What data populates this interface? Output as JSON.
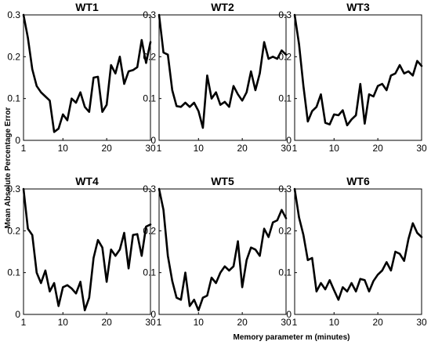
{
  "figure": {
    "xlabel": "Memory parameter m (minutes)",
    "ylabel": "Mean Absolute Percentage Error"
  },
  "chart_data": [
    {
      "type": "line",
      "title": "WT1",
      "xlim": [
        1,
        30
      ],
      "ylim": [
        0,
        0.3
      ],
      "xticks": [
        1,
        10,
        20,
        30
      ],
      "yticks": [
        0,
        0.1,
        0.2,
        0.3
      ],
      "x": [
        1,
        2,
        3,
        4,
        5,
        6,
        7,
        8,
        9,
        10,
        11,
        12,
        13,
        14,
        15,
        16,
        17,
        18,
        19,
        20,
        21,
        22,
        23,
        24,
        25,
        26,
        27,
        28,
        29,
        30
      ],
      "values": [
        0.3,
        0.245,
        0.17,
        0.13,
        0.115,
        0.105,
        0.095,
        0.02,
        0.028,
        0.062,
        0.048,
        0.1,
        0.09,
        0.115,
        0.08,
        0.068,
        0.15,
        0.152,
        0.068,
        0.085,
        0.18,
        0.16,
        0.2,
        0.135,
        0.165,
        0.168,
        0.175,
        0.24,
        0.185,
        0.235
      ]
    },
    {
      "type": "line",
      "title": "WT2",
      "xlim": [
        1,
        30
      ],
      "ylim": [
        0,
        0.3
      ],
      "xticks": [
        1,
        10,
        20,
        30
      ],
      "yticks": [
        0,
        0.1,
        0.2,
        0.3
      ],
      "x": [
        1,
        2,
        3,
        4,
        5,
        6,
        7,
        8,
        9,
        10,
        11,
        12,
        13,
        14,
        15,
        16,
        17,
        18,
        19,
        20,
        21,
        22,
        23,
        24,
        25,
        26,
        27,
        28,
        29,
        30
      ],
      "values": [
        0.3,
        0.21,
        0.205,
        0.12,
        0.082,
        0.08,
        0.09,
        0.08,
        0.09,
        0.07,
        0.03,
        0.155,
        0.1,
        0.115,
        0.085,
        0.092,
        0.08,
        0.13,
        0.11,
        0.095,
        0.115,
        0.165,
        0.12,
        0.16,
        0.235,
        0.195,
        0.2,
        0.195,
        0.215,
        0.205
      ]
    },
    {
      "type": "line",
      "title": "WT3",
      "xlim": [
        1,
        30
      ],
      "ylim": [
        0,
        0.3
      ],
      "xticks": [
        1,
        10,
        20,
        30
      ],
      "yticks": [
        0,
        0.1,
        0.2,
        0.3
      ],
      "x": [
        1,
        2,
        3,
        4,
        5,
        6,
        7,
        8,
        9,
        10,
        11,
        12,
        13,
        14,
        15,
        16,
        17,
        18,
        19,
        20,
        21,
        22,
        23,
        24,
        25,
        26,
        27,
        28,
        29,
        30
      ],
      "values": [
        0.3,
        0.23,
        0.13,
        0.045,
        0.07,
        0.08,
        0.11,
        0.042,
        0.038,
        0.062,
        0.06,
        0.072,
        0.036,
        0.05,
        0.06,
        0.135,
        0.04,
        0.11,
        0.105,
        0.13,
        0.135,
        0.12,
        0.155,
        0.16,
        0.18,
        0.16,
        0.165,
        0.155,
        0.19,
        0.178
      ]
    },
    {
      "type": "line",
      "title": "WT4",
      "xlim": [
        1,
        30
      ],
      "ylim": [
        0,
        0.3
      ],
      "xticks": [
        1,
        10,
        20,
        30
      ],
      "yticks": [
        0,
        0.1,
        0.2,
        0.3
      ],
      "x": [
        1,
        2,
        3,
        4,
        5,
        6,
        7,
        8,
        9,
        10,
        11,
        12,
        13,
        14,
        15,
        16,
        17,
        18,
        19,
        20,
        21,
        22,
        23,
        24,
        25,
        26,
        27,
        28,
        29,
        30
      ],
      "values": [
        0.3,
        0.205,
        0.19,
        0.1,
        0.075,
        0.105,
        0.055,
        0.075,
        0.02,
        0.065,
        0.07,
        0.062,
        0.05,
        0.078,
        0.01,
        0.04,
        0.135,
        0.178,
        0.16,
        0.078,
        0.155,
        0.14,
        0.155,
        0.195,
        0.11,
        0.19,
        0.192,
        0.14,
        0.21,
        0.215
      ]
    },
    {
      "type": "line",
      "title": "WT5",
      "xlim": [
        1,
        30
      ],
      "ylim": [
        0,
        0.3
      ],
      "xticks": [
        1,
        10,
        20,
        30
      ],
      "yticks": [
        0,
        0.1,
        0.2,
        0.3
      ],
      "x": [
        1,
        2,
        3,
        4,
        5,
        6,
        7,
        8,
        9,
        10,
        11,
        12,
        13,
        14,
        15,
        16,
        17,
        18,
        19,
        20,
        21,
        22,
        23,
        24,
        25,
        26,
        27,
        28,
        29,
        30
      ],
      "values": [
        0.3,
        0.25,
        0.14,
        0.08,
        0.04,
        0.035,
        0.1,
        0.02,
        0.035,
        0.01,
        0.04,
        0.045,
        0.088,
        0.075,
        0.1,
        0.115,
        0.105,
        0.115,
        0.175,
        0.065,
        0.13,
        0.16,
        0.155,
        0.14,
        0.205,
        0.185,
        0.22,
        0.225,
        0.25,
        0.23
      ]
    },
    {
      "type": "line",
      "title": "WT6",
      "xlim": [
        1,
        30
      ],
      "ylim": [
        0,
        0.3
      ],
      "xticks": [
        1,
        10,
        20,
        30
      ],
      "yticks": [
        0,
        0.1,
        0.2,
        0.3
      ],
      "x": [
        1,
        2,
        3,
        4,
        5,
        6,
        7,
        8,
        9,
        10,
        11,
        12,
        13,
        14,
        15,
        16,
        17,
        18,
        19,
        20,
        21,
        22,
        23,
        24,
        25,
        26,
        27,
        28,
        29,
        30
      ],
      "values": [
        0.3,
        0.232,
        0.19,
        0.13,
        0.135,
        0.055,
        0.075,
        0.06,
        0.082,
        0.058,
        0.035,
        0.065,
        0.055,
        0.075,
        0.055,
        0.085,
        0.082,
        0.055,
        0.08,
        0.095,
        0.105,
        0.125,
        0.105,
        0.15,
        0.145,
        0.128,
        0.18,
        0.218,
        0.195,
        0.185
      ]
    }
  ]
}
